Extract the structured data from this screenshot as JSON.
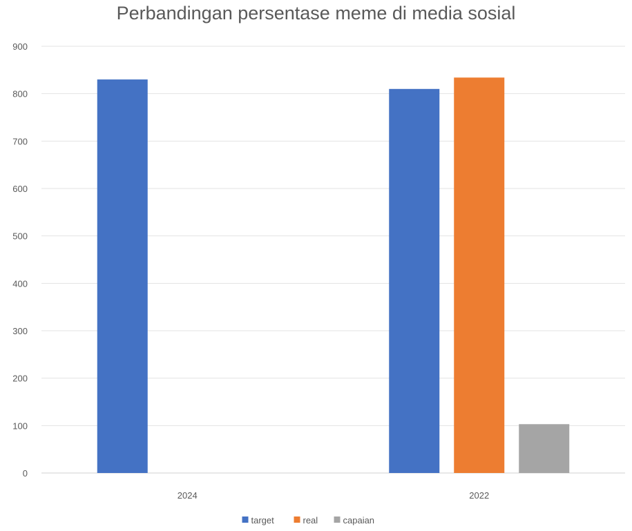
{
  "chart_data": {
    "type": "bar",
    "title": "Perbandingan persentase meme di media sosial",
    "xlabel": "",
    "ylabel": "",
    "categories": [
      "2024",
      "2022"
    ],
    "series": [
      {
        "name": "target",
        "values": [
          830,
          810
        ],
        "color": "#4472C4"
      },
      {
        "name": "real",
        "values": [
          null,
          834
        ],
        "color": "#ED7D31"
      },
      {
        "name": "capaian",
        "values": [
          null,
          103
        ],
        "color": "#A5A5A5"
      }
    ],
    "ylim": [
      0,
      900
    ],
    "yticks": [
      "0",
      "100",
      "200",
      "300",
      "400",
      "500",
      "600",
      "700",
      "800",
      "900"
    ],
    "grid": true,
    "legend_position": "bottom"
  }
}
